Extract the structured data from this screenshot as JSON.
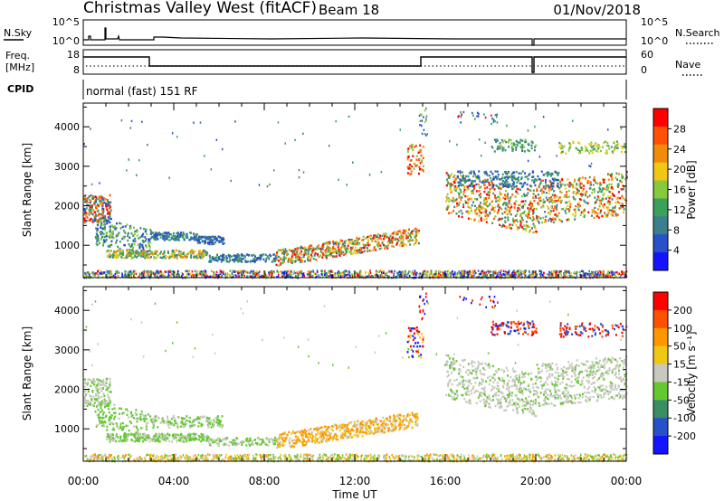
{
  "header": {
    "title": "Christmas Valley West (fitACF)",
    "beam": "Beam 18",
    "date": "01/Nov/2018"
  },
  "strip1": {
    "left_label": "N.Sky",
    "left_ticks": [
      "10^5",
      "10^0"
    ],
    "right_ticks": [
      "10^5",
      "10^0"
    ],
    "right_label": "N.Search"
  },
  "strip2": {
    "left_label_1": "Freq.",
    "left_label_2": "[MHz]",
    "left_ticks": [
      "18",
      "8"
    ],
    "right_ticks": [
      "60",
      "0"
    ],
    "right_label": "Nave"
  },
  "strip3": {
    "cpid_label": "CPID",
    "program": "normal (fast) 151 RF"
  },
  "colors": {
    "power_scale": [
      "#1414ff",
      "#2850c8",
      "#3c7f8c",
      "#3ca05a",
      "#88c83c",
      "#f0c814",
      "#f08c0a",
      "#ff5005",
      "#ff0000"
    ],
    "velocity_scale": [
      "#1414ff",
      "#2850c8",
      "#3c8c64",
      "#64c832",
      "#c8c8c0",
      "#f0c814",
      "#ff9600",
      "#ff5000",
      "#ff0000"
    ]
  },
  "chart_data": [
    {
      "type": "heatmap",
      "name": "power",
      "xlabel": "",
      "ylabel": "Slant Range [km]",
      "ylim": [
        180,
        4600
      ],
      "yticks": [
        "1000",
        "2000",
        "3000",
        "4000"
      ],
      "colorbar_label": "Power [dB]",
      "colorbar_ticks": [
        "4",
        "8",
        "12",
        "16",
        "20",
        "24",
        "28"
      ],
      "colorbar_range": [
        0,
        32
      ]
    },
    {
      "type": "heatmap",
      "name": "velocity",
      "xlabel": "Time UT",
      "ylabel": "Slant Range [km]",
      "ylim": [
        180,
        4600
      ],
      "yticks": [
        "1000",
        "2000",
        "3000",
        "4000"
      ],
      "xticks": [
        "00:00",
        "04:00",
        "08:00",
        "12:00",
        "16:00",
        "20:00",
        "00:00"
      ],
      "colorbar_label": "Velocity [m s⁻¹]",
      "colorbar_ticks": [
        "200",
        "100",
        "50",
        "15",
        "-15",
        "-50",
        "-100",
        "-200"
      ]
    }
  ]
}
